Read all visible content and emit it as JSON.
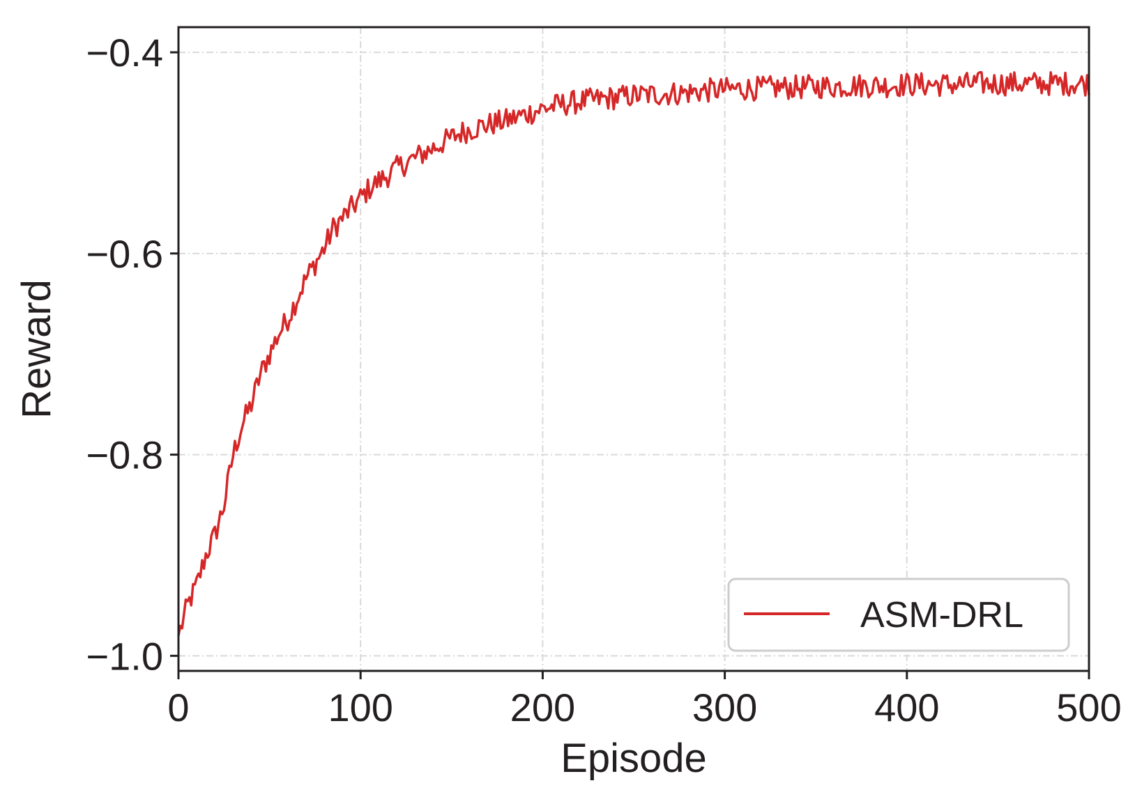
{
  "chart_data": {
    "type": "line",
    "title": "",
    "xlabel": "Episode",
    "ylabel": "Reward",
    "xlim": [
      0,
      500
    ],
    "ylim": [
      -1.015,
      -0.375
    ],
    "xticks": [
      0,
      100,
      200,
      300,
      400,
      500
    ],
    "xtick_labels": [
      "0",
      "100",
      "200",
      "300",
      "400",
      "500"
    ],
    "yticks": [
      -1.0,
      -0.8,
      -0.6,
      -0.4
    ],
    "ytick_labels": [
      "−1.0",
      "−0.8",
      "−0.6",
      "−0.4"
    ],
    "grid": true,
    "legend_position": "lower-right",
    "series": [
      {
        "name": "ASM-DRL",
        "color": "#d62728",
        "x": [
          0,
          5,
          10,
          15,
          20,
          25,
          30,
          35,
          40,
          45,
          50,
          55,
          60,
          65,
          70,
          75,
          80,
          85,
          90,
          95,
          100,
          105,
          110,
          115,
          120,
          125,
          130,
          135,
          140,
          145,
          150,
          155,
          160,
          165,
          170,
          175,
          180,
          185,
          190,
          195,
          200,
          210,
          220,
          230,
          240,
          250,
          260,
          270,
          280,
          290,
          300,
          310,
          320,
          330,
          340,
          350,
          360,
          370,
          380,
          390,
          400,
          410,
          420,
          430,
          440,
          450,
          460,
          470,
          480,
          490,
          500
        ],
        "values": [
          -0.98,
          -0.95,
          -0.93,
          -0.9,
          -0.88,
          -0.85,
          -0.8,
          -0.77,
          -0.75,
          -0.72,
          -0.7,
          -0.68,
          -0.665,
          -0.645,
          -0.625,
          -0.61,
          -0.595,
          -0.575,
          -0.565,
          -0.555,
          -0.545,
          -0.535,
          -0.528,
          -0.522,
          -0.515,
          -0.51,
          -0.505,
          -0.5,
          -0.495,
          -0.49,
          -0.485,
          -0.48,
          -0.477,
          -0.474,
          -0.472,
          -0.47,
          -0.468,
          -0.465,
          -0.462,
          -0.459,
          -0.456,
          -0.452,
          -0.449,
          -0.447,
          -0.445,
          -0.443,
          -0.442,
          -0.441,
          -0.44,
          -0.438,
          -0.437,
          -0.436,
          -0.436,
          -0.435,
          -0.435,
          -0.434,
          -0.434,
          -0.433,
          -0.433,
          -0.433,
          -0.432,
          -0.432,
          -0.432,
          -0.432,
          -0.431,
          -0.431,
          -0.431,
          -0.431,
          -0.431,
          -0.431,
          -0.431
        ],
        "noise": 0.012
      }
    ]
  }
}
